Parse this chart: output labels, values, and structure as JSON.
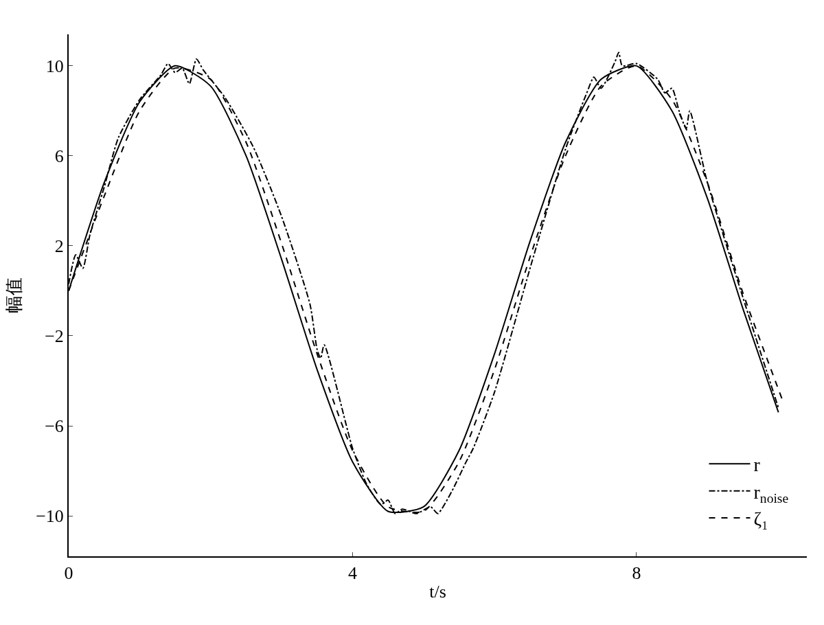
{
  "chart_data": {
    "type": "line",
    "xlabel": "t/s",
    "ylabel": "幅值",
    "xlim": [
      0,
      10.4
    ],
    "ylim": [
      -11.8,
      11.4
    ],
    "xticks": [
      0,
      4,
      8
    ],
    "yticks": [
      -10,
      -6,
      -2,
      2,
      6,
      10
    ],
    "legend": "bottom right",
    "marker": "none",
    "series": [
      {
        "name": "r",
        "color": "#000000",
        "line_style": "solid",
        "x": [
          0,
          0.5,
          1,
          1.5,
          2,
          2.5,
          3,
          3.5,
          4,
          4.5,
          5,
          5.5,
          6,
          6.5,
          7,
          7.5,
          8,
          8.5,
          9,
          9.5,
          10
        ],
        "values": [
          0,
          4.8,
          8.4,
          10.0,
          9.1,
          6.0,
          1.4,
          -3.5,
          -7.6,
          -9.8,
          -9.6,
          -7.1,
          -2.8,
          2.2,
          6.6,
          9.4,
          10.0,
          8.0,
          4.1,
          -0.8,
          -5.4
        ]
      },
      {
        "name": "r$_{noise}$",
        "color": "#000000",
        "line_style": "dashdot",
        "x": [
          0,
          0.1,
          0.2,
          0.3,
          0.5,
          0.7,
          1.0,
          1.3,
          1.4,
          1.5,
          1.6,
          1.7,
          1.8,
          1.9,
          2.2,
          2.6,
          3.0,
          3.4,
          3.5,
          3.55,
          3.6,
          4.0,
          4.2,
          4.4,
          4.5,
          4.6,
          4.7,
          4.9,
          5.1,
          5.2,
          5.4,
          5.6,
          5.7,
          6.0,
          6.5,
          7.0,
          7.3,
          7.4,
          7.5,
          7.7,
          7.75,
          7.8,
          8.0,
          8.3,
          8.4,
          8.5,
          8.6,
          8.7,
          8.75,
          9.0,
          9.5,
          10.0
        ],
        "values": [
          0.3,
          1.6,
          1.0,
          2.5,
          4.6,
          6.8,
          8.5,
          9.6,
          10.1,
          9.7,
          9.9,
          9.2,
          10.3,
          9.8,
          8.6,
          6.4,
          3.3,
          -0.6,
          -2.6,
          -3.0,
          -2.4,
          -7.0,
          -8.6,
          -9.5,
          -9.3,
          -9.9,
          -9.7,
          -9.9,
          -9.6,
          -9.9,
          -8.9,
          -7.6,
          -7.0,
          -4.5,
          1.0,
          6.3,
          8.8,
          9.5,
          9.0,
          10.2,
          10.6,
          10.0,
          10.1,
          9.4,
          8.8,
          9.0,
          8.0,
          7.2,
          8.0,
          4.8,
          -0.3,
          -5.2
        ]
      },
      {
        "name": "ζ₁",
        "color": "#000000",
        "line_style": "dashed",
        "x": [
          0,
          0.5,
          1,
          1.5,
          2,
          2.5,
          3,
          3.5,
          4,
          4.5,
          5,
          5.5,
          6,
          6.5,
          7,
          7.5,
          8,
          8.5,
          9,
          9.5,
          10.05
        ],
        "values": [
          0,
          4.2,
          8.0,
          9.9,
          9.4,
          6.6,
          2.1,
          -2.8,
          -7.1,
          -9.6,
          -9.8,
          -7.6,
          -3.5,
          1.5,
          6.0,
          9.1,
          10.0,
          8.5,
          4.8,
          -0.1,
          -4.8
        ]
      }
    ]
  }
}
